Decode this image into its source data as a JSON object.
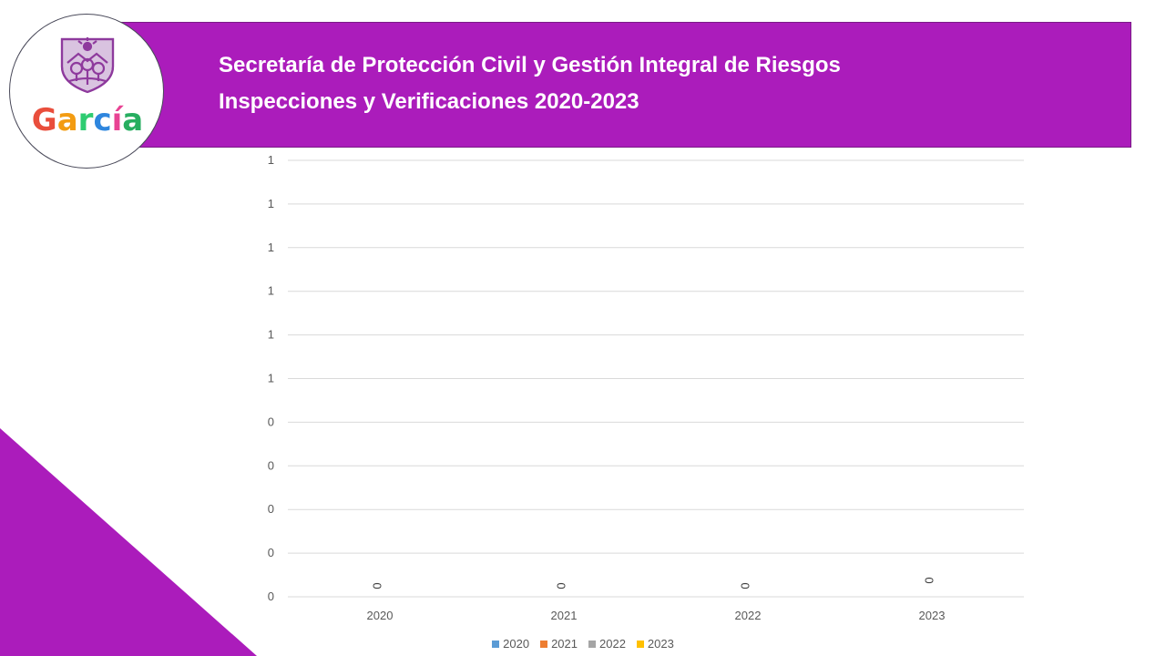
{
  "header": {
    "title_line_1": "Secretaría de Protección Civil y Gestión Integral de Riesgos",
    "title_line_2": "Inspecciones y Verificaciones 2020-2023",
    "band_color": "#ab1cbb"
  },
  "logo": {
    "wordmark": "García",
    "letters": [
      "G",
      "a",
      "r",
      "c",
      "í",
      "a"
    ],
    "letter_colors": [
      "#e94e3c",
      "#f39c12",
      "#2ecc71",
      "#2e86de",
      "#e84393",
      "#27ae60"
    ],
    "shield_color": "#8e3a9d"
  },
  "decor": {
    "corner_color": "#ab1cbb"
  },
  "chart_data": {
    "type": "bar",
    "categories": [
      "2020",
      "2021",
      "2022",
      "2023"
    ],
    "series": [
      {
        "name": "2020",
        "values": [
          0,
          0,
          0,
          0
        ],
        "color": "#5b9bd5"
      },
      {
        "name": "2021",
        "values": [
          0,
          0,
          0,
          0
        ],
        "color": "#ed7d31"
      },
      {
        "name": "2022",
        "values": [
          0,
          0,
          0,
          0
        ],
        "color": "#a5a5a5"
      },
      {
        "name": "2023",
        "values": [
          0,
          0,
          0,
          0
        ],
        "color": "#ffc000"
      }
    ],
    "data_labels": [
      "0",
      "0",
      "0",
      "0"
    ],
    "y_tick_labels": [
      "0",
      "0",
      "0",
      "0",
      "0",
      "1",
      "1",
      "1",
      "1",
      "1",
      "1"
    ],
    "ylim": [
      0,
      1
    ],
    "grid": true,
    "legend_position": "bottom",
    "title": "",
    "xlabel": "",
    "ylabel": ""
  }
}
